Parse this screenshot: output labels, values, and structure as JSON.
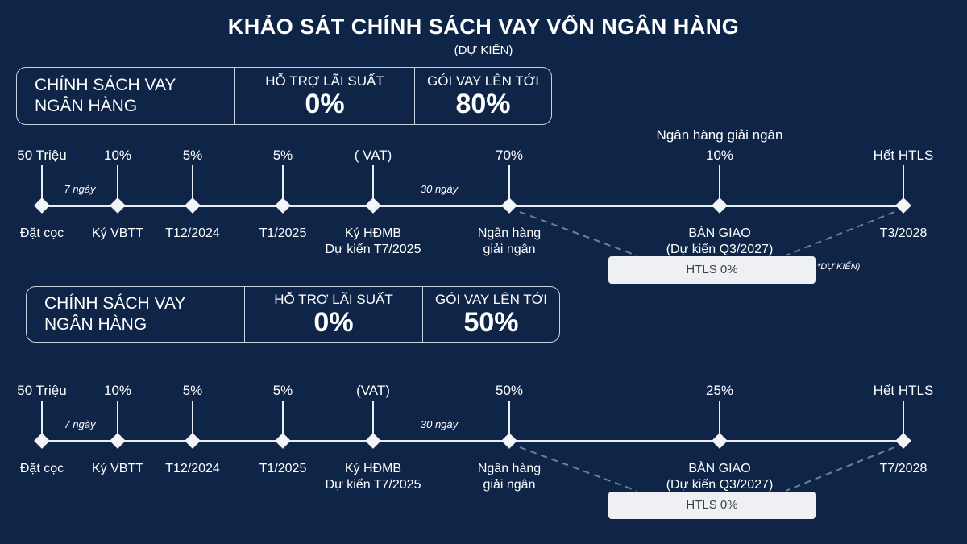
{
  "title": "KHẢO SÁT CHÍNH SÁCH VAY VỐN NGÂN HÀNG",
  "subtitle": "(DỰ KIẾN)",
  "colors": {
    "background": "#0f2548",
    "line": "#e8edf4",
    "box": "#eef0f3"
  },
  "sections": [
    {
      "policy": {
        "label_line1": "CHÍNH SÁCH VAY",
        "label_line2": "NGÂN HÀNG",
        "support_label": "HỖ TRỢ LÃI SUẤT",
        "support_value": "0%",
        "loan_label": "GÓI VAY LÊN TỚI",
        "loan_value": "80%"
      },
      "gap_7": "7 ngày",
      "gap_30": "30 ngày",
      "milestones": [
        {
          "top": "50 Triệu",
          "bottom": [
            "Đặt cọc"
          ]
        },
        {
          "top": "10%",
          "bottom": [
            "Ký VBTT"
          ]
        },
        {
          "top": "5%",
          "bottom": [
            "T12/2024"
          ]
        },
        {
          "top": "5%",
          "bottom": [
            "T1/2025"
          ]
        },
        {
          "top": "( VAT)",
          "bottom": [
            "Ký HĐMB",
            "Dự kiến T7/2025"
          ]
        },
        {
          "top": "70%",
          "bottom": [
            "Ngân hàng",
            "giải ngân"
          ]
        },
        {
          "top_extra": "Ngân hàng giải ngân",
          "top": "10%",
          "bottom": [
            "BÀN GIAO",
            "(Dự kiến Q3/2027)"
          ]
        },
        {
          "top": "Hết HTLS",
          "bottom": [
            "T3/2028"
          ]
        }
      ],
      "htls": "HTLS 0%",
      "note": "*DỰ KIẾN)"
    },
    {
      "policy": {
        "label_line1": "CHÍNH SÁCH VAY",
        "label_line2": "NGÂN HÀNG",
        "support_label": "HỖ TRỢ LÃI SUẤT",
        "support_value": "0%",
        "loan_label": "GÓI VAY LÊN TỚI",
        "loan_value": "50%"
      },
      "gap_7": "7 ngày",
      "gap_30": "30 ngày",
      "milestones": [
        {
          "top": "50 Triệu",
          "bottom": [
            "Đặt cọc"
          ]
        },
        {
          "top": "10%",
          "bottom": [
            "Ký VBTT"
          ]
        },
        {
          "top": "5%",
          "bottom": [
            "T12/2024"
          ]
        },
        {
          "top": "5%",
          "bottom": [
            "T1/2025"
          ]
        },
        {
          "top": "(VAT)",
          "bottom": [
            "Ký HĐMB",
            "Dự kiến T7/2025"
          ]
        },
        {
          "top": "50%",
          "bottom": [
            "Ngân hàng",
            "giải ngân"
          ]
        },
        {
          "top": "25%",
          "bottom": [
            "BÀN GIAO",
            "(Dự kiến Q3/2027)"
          ]
        },
        {
          "top": "Hết HTLS",
          "bottom": [
            "T7/2028"
          ]
        }
      ],
      "htls": "HTLS 0%"
    }
  ]
}
